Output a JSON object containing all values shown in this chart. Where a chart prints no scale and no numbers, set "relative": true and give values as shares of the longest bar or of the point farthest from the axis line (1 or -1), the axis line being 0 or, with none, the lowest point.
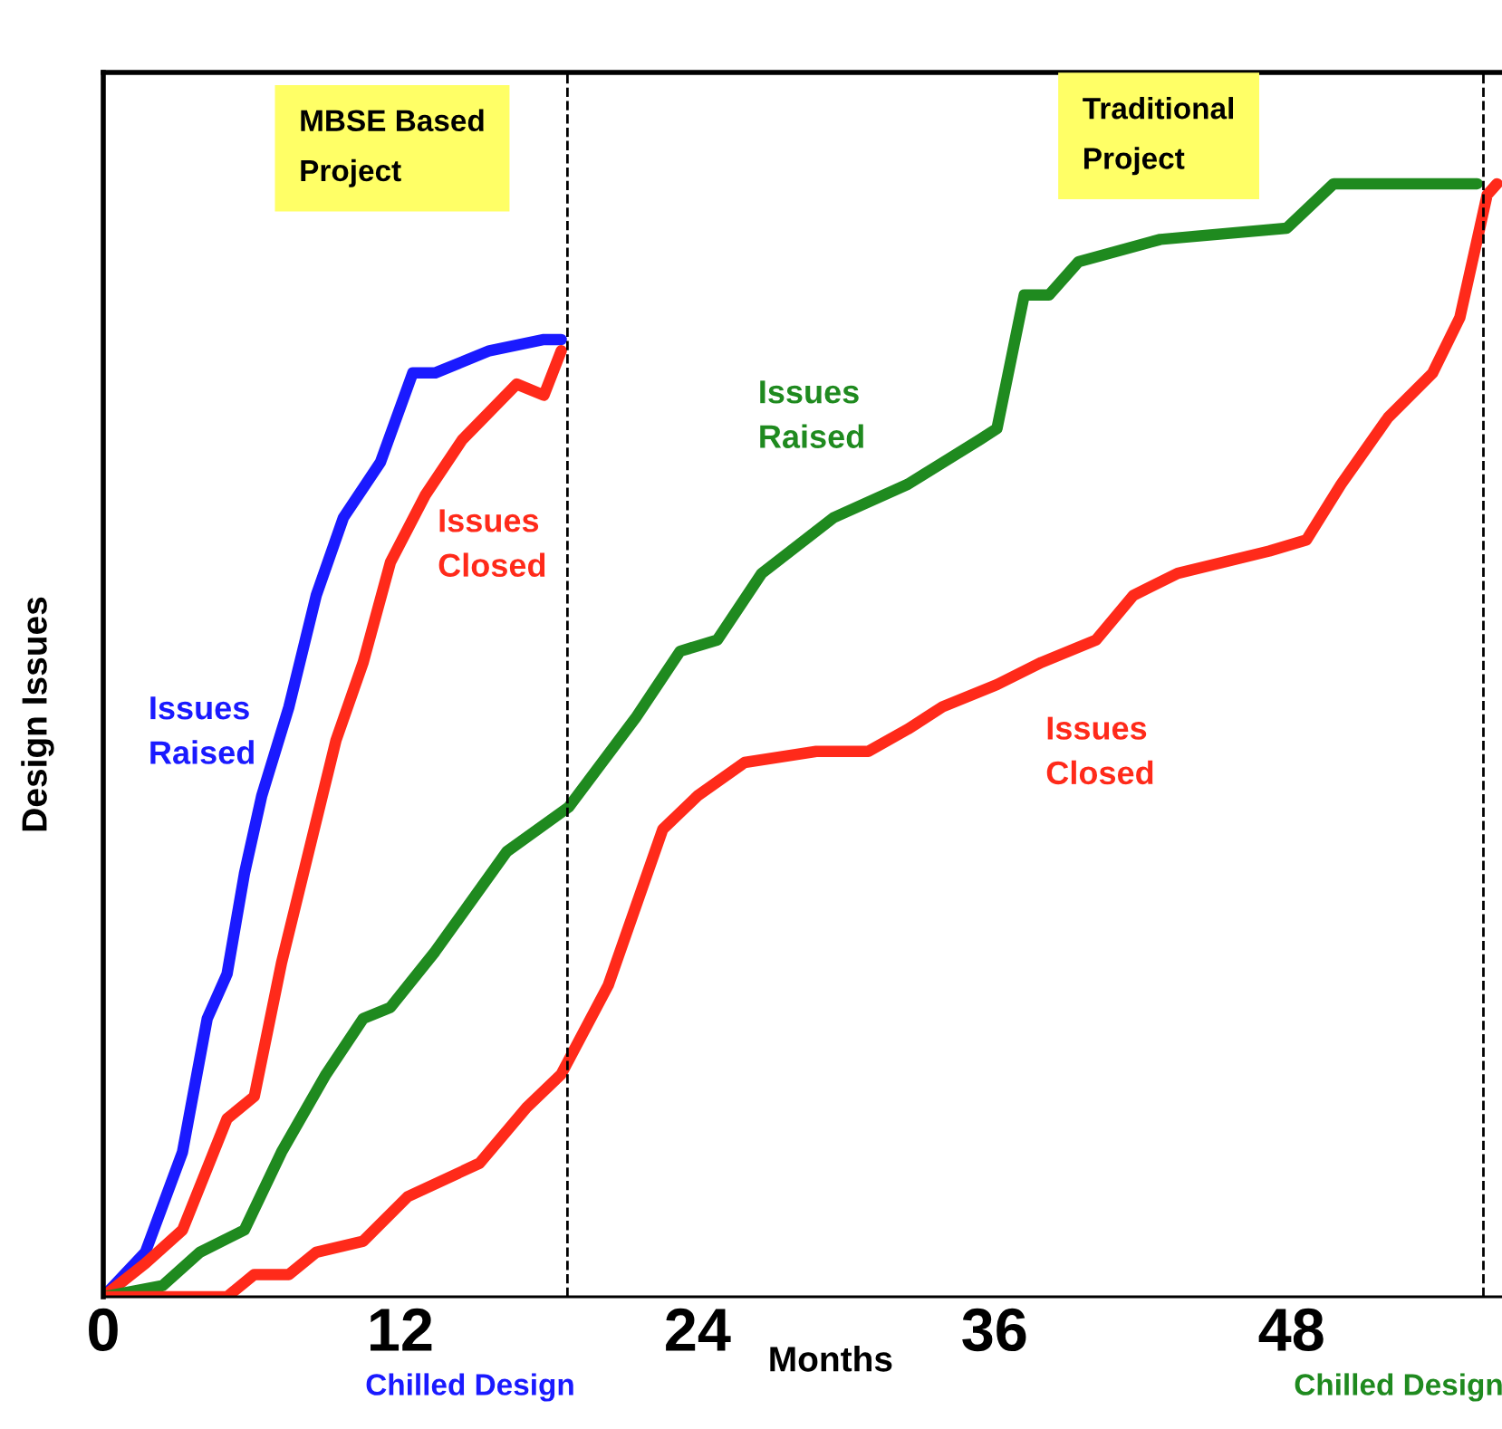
{
  "chart_data": {
    "type": "line",
    "relative": true,
    "xlabel": "Months",
    "ylabel": "Design Issues",
    "xlim": [
      0,
      56.5
    ],
    "xticks": [
      0,
      12,
      24,
      36,
      48
    ],
    "grid": false,
    "legend": false,
    "marker": "none",
    "line_style": "solid",
    "annotations": [
      "MBSE Based Project",
      "Traditional Project"
    ],
    "ref_lines": [
      {
        "axis": "x",
        "value": 18.75,
        "label": "Chilled Design",
        "line_style": "dashed"
      },
      {
        "axis": "x",
        "value": 55.75,
        "label": "Chilled Design",
        "line_style": "dashed"
      }
    ],
    "series": [
      {
        "name": "Issues Raised",
        "color": "#1a1aff",
        "x": [
          0,
          1.7,
          3.2,
          4.2,
          5.0,
          5.7,
          6.4,
          7.5,
          8.6,
          9.7,
          11.2,
          12.5,
          13.4,
          15.6,
          17.8,
          18.5
        ],
        "values": [
          0,
          0.04,
          0.13,
          0.25,
          0.29,
          0.38,
          0.45,
          0.53,
          0.63,
          0.7,
          0.75,
          0.83,
          0.83,
          0.85,
          0.86,
          0.86
        ]
      },
      {
        "name": "Issues Closed",
        "color": "#ff2a1a",
        "x": [
          0,
          1.7,
          3.2,
          5.0,
          6.1,
          7.2,
          8.3,
          9.4,
          10.5,
          11.6,
          13.0,
          14.5,
          16.7,
          17.8,
          18.5
        ],
        "values": [
          0,
          0.03,
          0.06,
          0.16,
          0.18,
          0.3,
          0.4,
          0.5,
          0.57,
          0.66,
          0.72,
          0.77,
          0.82,
          0.81,
          0.85
        ]
      },
      {
        "name": "Issues Raised",
        "color": "#1f8a1f",
        "x": [
          0,
          2.4,
          3.9,
          5.7,
          7.2,
          9.0,
          10.5,
          11.6,
          13.4,
          16.3,
          18.8,
          21.5,
          23.3,
          24.8,
          26.6,
          29.5,
          32.5,
          35.4,
          36.1,
          37.2,
          38.2,
          39.4,
          42.7,
          47.8,
          49.7,
          51.5,
          55.5
        ],
        "values": [
          0,
          0.01,
          0.04,
          0.06,
          0.13,
          0.2,
          0.25,
          0.26,
          0.31,
          0.4,
          0.44,
          0.52,
          0.58,
          0.59,
          0.65,
          0.7,
          0.73,
          0.77,
          0.78,
          0.9,
          0.9,
          0.93,
          0.95,
          0.96,
          1.0,
          1.0,
          1.0
        ]
      },
      {
        "name": "Issues Closed",
        "color": "#ff2a1a",
        "x": [
          0,
          5.0,
          6.1,
          7.5,
          8.6,
          10.5,
          12.3,
          15.2,
          17.1,
          18.5,
          20.4,
          22.6,
          24.0,
          25.9,
          28.8,
          30.9,
          32.5,
          33.9,
          36.1,
          37.9,
          40.1,
          41.6,
          43.4,
          47.1,
          48.6,
          50.0,
          51.9,
          53.7,
          54.8,
          55.9,
          56.3
        ],
        "values": [
          0,
          0,
          0.02,
          0.02,
          0.04,
          0.05,
          0.09,
          0.12,
          0.17,
          0.2,
          0.28,
          0.42,
          0.45,
          0.48,
          0.49,
          0.49,
          0.51,
          0.53,
          0.55,
          0.57,
          0.59,
          0.63,
          0.65,
          0.67,
          0.68,
          0.73,
          0.79,
          0.83,
          0.88,
          0.99,
          1.0
        ]
      }
    ]
  }
}
